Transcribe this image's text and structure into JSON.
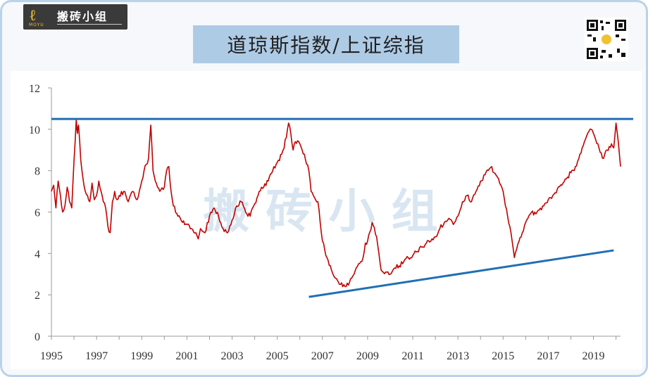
{
  "logo": {
    "text": "搬砖小组",
    "sub": "MOYU"
  },
  "title": "道琼斯指数/上证综指",
  "watermark": "搬 砖 小 组",
  "colors": {
    "series": "#c00000",
    "reference": "#1f6fb5",
    "title_bg": "#aecbe6",
    "frame": "#b9d3ea"
  },
  "chart_data": {
    "type": "line",
    "title": "道琼斯指数/上证综指",
    "xlabel": "",
    "ylabel": "",
    "xlim": [
      1995.0,
      2020.2
    ],
    "ylim": [
      0,
      12
    ],
    "yticks": [
      "0",
      "2",
      "4",
      "6",
      "8",
      "10",
      "12"
    ],
    "xticks": [
      "1995",
      "1997",
      "1999",
      "2001",
      "2003",
      "2005",
      "2007",
      "2009",
      "2011",
      "2013",
      "2015",
      "2017",
      "2019"
    ],
    "series": [
      {
        "x": [
          1995.0,
          1995.1,
          1995.2,
          1995.3,
          1995.4,
          1995.5,
          1995.6,
          1995.7,
          1995.8,
          1995.9,
          1996.0,
          1996.1,
          1996.15,
          1996.2,
          1996.3,
          1996.4,
          1996.5,
          1996.6,
          1996.7,
          1996.8,
          1996.9,
          1997.0,
          1997.1,
          1997.2,
          1997.3,
          1997.4,
          1997.5,
          1997.6,
          1997.7,
          1997.8,
          1997.9,
          1998.0,
          1998.2,
          1998.4,
          1998.6,
          1998.8,
          1999.0,
          1999.1,
          1999.2,
          1999.3,
          1999.4,
          1999.5,
          1999.6,
          1999.8,
          2000.0,
          2000.1,
          2000.2,
          2000.3,
          2000.4,
          2000.6,
          2000.8,
          2001.0,
          2001.2,
          2001.4,
          2001.5,
          2001.6,
          2001.8,
          2002.0,
          2002.2,
          2002.4,
          2002.6,
          2002.8,
          2003.0,
          2003.2,
          2003.4,
          2003.6,
          2003.8,
          2004.0,
          2004.2,
          2004.4,
          2004.6,
          2004.8,
          2005.0,
          2005.2,
          2005.4,
          2005.5,
          2005.6,
          2005.7,
          2005.8,
          2006.0,
          2006.2,
          2006.4,
          2006.5,
          2006.6,
          2006.8,
          2006.9,
          2007.0,
          2007.2,
          2007.4,
          2007.6,
          2007.8,
          2008.0,
          2008.2,
          2008.4,
          2008.6,
          2008.8,
          2008.9,
          2009.0,
          2009.2,
          2009.4,
          2009.6,
          2009.8,
          2010.0,
          2010.2,
          2010.4,
          2010.6,
          2010.8,
          2011.0,
          2011.2,
          2011.4,
          2011.6,
          2011.8,
          2012.0,
          2012.2,
          2012.4,
          2012.6,
          2012.8,
          2013.0,
          2013.2,
          2013.4,
          2013.6,
          2013.8,
          2014.0,
          2014.2,
          2014.4,
          2014.5,
          2014.6,
          2014.8,
          2014.9,
          2015.0,
          2015.2,
          2015.4,
          2015.5,
          2015.6,
          2015.8,
          2016.0,
          2016.2,
          2016.4,
          2016.6,
          2016.8,
          2017.0,
          2017.2,
          2017.4,
          2017.6,
          2017.8,
          2018.0,
          2018.2,
          2018.4,
          2018.6,
          2018.8,
          2018.9,
          2019.0,
          2019.2,
          2019.4,
          2019.6,
          2019.8,
          2019.9,
          2020.0,
          2020.1,
          2020.2
        ],
        "y": [
          7.0,
          7.3,
          6.2,
          7.5,
          6.8,
          6.0,
          6.3,
          7.2,
          6.5,
          6.2,
          8.5,
          10.5,
          9.8,
          10.2,
          8.5,
          7.6,
          7.0,
          6.8,
          6.5,
          7.4,
          6.6,
          6.8,
          7.5,
          7.0,
          6.5,
          6.2,
          5.3,
          5.0,
          6.5,
          7.0,
          6.6,
          6.8,
          7.0,
          6.5,
          7.0,
          6.6,
          7.5,
          8.0,
          8.3,
          8.6,
          10.2,
          8.0,
          7.5,
          7.0,
          7.2,
          8.0,
          8.2,
          7.0,
          6.3,
          5.8,
          5.5,
          5.4,
          5.2,
          5.0,
          4.7,
          5.2,
          5.0,
          5.8,
          6.2,
          5.8,
          5.2,
          5.0,
          5.6,
          6.3,
          6.5,
          6.0,
          5.8,
          6.4,
          7.0,
          7.2,
          7.5,
          8.0,
          8.4,
          8.8,
          9.6,
          10.3,
          9.8,
          9.0,
          9.4,
          9.3,
          8.8,
          8.0,
          7.0,
          6.8,
          6.5,
          5.5,
          4.6,
          3.8,
          3.2,
          2.8,
          2.5,
          2.4,
          2.6,
          3.0,
          3.5,
          3.8,
          4.5,
          4.6,
          5.5,
          4.8,
          3.2,
          3.1,
          3.0,
          3.3,
          3.4,
          3.6,
          3.8,
          3.9,
          4.1,
          4.3,
          4.5,
          4.6,
          4.8,
          5.2,
          5.5,
          5.7,
          5.4,
          5.8,
          6.5,
          6.8,
          6.5,
          7.0,
          7.5,
          7.8,
          8.1,
          8.2,
          7.9,
          7.6,
          7.3,
          7.0,
          5.8,
          4.6,
          3.8,
          4.2,
          4.8,
          5.5,
          5.9,
          6.0,
          6.1,
          6.3,
          6.6,
          6.8,
          7.1,
          7.3,
          7.6,
          7.9,
          8.2,
          8.8,
          9.4,
          9.9,
          10.0,
          9.8,
          9.3,
          8.6,
          9.0,
          9.3,
          9.1,
          10.3,
          9.4,
          8.2
        ]
      }
    ],
    "reference_lines": [
      {
        "type": "horizontal",
        "y": 10.5
      },
      {
        "type": "trend",
        "x1": 2006.4,
        "y1": 1.9,
        "x2": 2019.9,
        "y2": 4.15
      }
    ],
    "grid": false
  }
}
